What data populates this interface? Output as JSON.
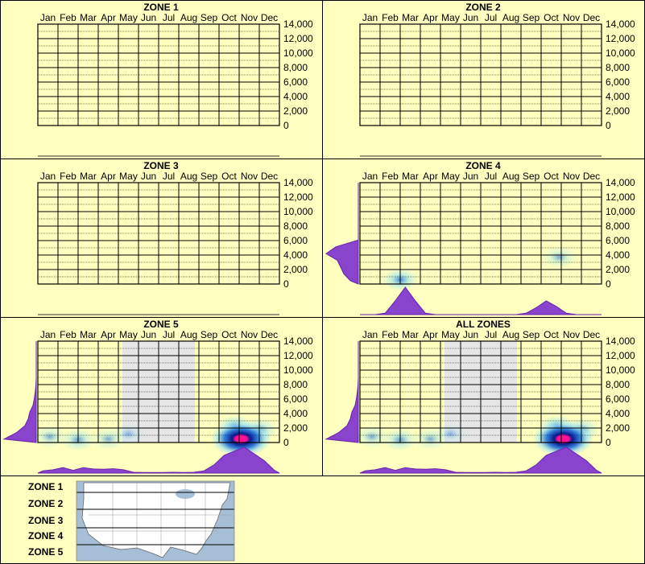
{
  "months": [
    "Jan",
    "Feb",
    "Mar",
    "Apr",
    "May",
    "Jun",
    "Jul",
    "Aug",
    "Sep",
    "Oct",
    "Nov",
    "Dec"
  ],
  "elevation_ticks": [
    "14,000",
    "12,000",
    "10,000",
    "8,000",
    "6,000",
    "4,000",
    "2,000",
    "0"
  ],
  "colors": {
    "background": "#ffffc0",
    "grid": "#000000",
    "density_fill": "#8844cc",
    "density_stroke": "#6a22b0",
    "season_shade": "#e6e6e6",
    "hotspot_low": "#9be3f0",
    "hotspot_mid": "#1e6fd8",
    "hotspot_high": "#0a1a8c",
    "hotspot_peak": "#ff1493"
  },
  "chart_data": [
    {
      "type": "heatmap",
      "title": "ZONE 1",
      "x": "month",
      "y": "elevation (ft)",
      "ylim": [
        0,
        14000
      ],
      "hotspots": [],
      "shaded_months": [],
      "monthly_density": [],
      "elevation_density": []
    },
    {
      "type": "heatmap",
      "title": "ZONE 2",
      "x": "month",
      "y": "elevation (ft)",
      "ylim": [
        0,
        14000
      ],
      "hotspots": [],
      "shaded_months": [],
      "monthly_density": [],
      "elevation_density": []
    },
    {
      "type": "heatmap",
      "title": "ZONE 3",
      "x": "month",
      "y": "elevation (ft)",
      "ylim": [
        0,
        14000
      ],
      "hotspots": [],
      "shaded_months": [],
      "monthly_density": [],
      "elevation_density": []
    },
    {
      "type": "heatmap",
      "title": "ZONE 4",
      "x": "month",
      "y": "elevation (ft)",
      "ylim": [
        0,
        14000
      ],
      "hotspots": [
        {
          "month": 2.0,
          "elev": 600,
          "intensity": 0.55
        },
        {
          "month": 9.9,
          "elev": 3700,
          "intensity": 0.3
        }
      ],
      "shaded_months": [],
      "monthly_density": [
        0,
        0,
        0.05,
        0.5,
        1.0,
        0.5,
        0.05,
        0,
        0,
        0,
        0,
        0,
        0,
        0,
        0,
        0,
        0.05,
        0.25,
        0.5,
        0.3,
        0.05,
        0,
        0,
        0
      ],
      "elevation_density": [
        0.25,
        0.45,
        0.55,
        0.65,
        1.0,
        0.7,
        0,
        0,
        0,
        0,
        0,
        0,
        0,
        0,
        0
      ]
    },
    {
      "type": "heatmap",
      "title": "ZONE 5",
      "x": "month",
      "y": "elevation (ft)",
      "ylim": [
        0,
        14000
      ],
      "hotspots": [
        {
          "month": 0.6,
          "elev": 800,
          "intensity": 0.3
        },
        {
          "month": 2.0,
          "elev": 400,
          "intensity": 0.4
        },
        {
          "month": 3.5,
          "elev": 500,
          "intensity": 0.3
        },
        {
          "month": 4.5,
          "elev": 1200,
          "intensity": 0.2
        },
        {
          "month": 9.8,
          "elev": 2200,
          "intensity": 0.55
        },
        {
          "month": 11.0,
          "elev": 1800,
          "intensity": 0.45
        },
        {
          "month": 10.1,
          "elev": 500,
          "intensity": 1.0
        }
      ],
      "shaded_months": [
        4.2,
        7.8
      ],
      "monthly_density": [
        0.08,
        0.12,
        0.2,
        0.1,
        0.2,
        0.15,
        0.14,
        0.16,
        0.12,
        0.03,
        0.02,
        0.02,
        0.02,
        0.03,
        0.02,
        0.03,
        0.08,
        0.3,
        0.65,
        0.8,
        0.95,
        0.7,
        0.45,
        0.1
      ],
      "elevation_density": [
        1.0,
        0.6,
        0.35,
        0.25,
        0.2,
        0.1,
        0.06,
        0.03,
        0.01,
        0,
        0,
        0,
        0,
        0,
        0
      ]
    },
    {
      "type": "heatmap",
      "title": "ALL ZONES",
      "x": "month",
      "y": "elevation (ft)",
      "ylim": [
        0,
        14000
      ],
      "hotspots": [
        {
          "month": 0.6,
          "elev": 800,
          "intensity": 0.3
        },
        {
          "month": 2.0,
          "elev": 400,
          "intensity": 0.4
        },
        {
          "month": 3.5,
          "elev": 500,
          "intensity": 0.3
        },
        {
          "month": 4.5,
          "elev": 1200,
          "intensity": 0.2
        },
        {
          "month": 9.8,
          "elev": 2200,
          "intensity": 0.55
        },
        {
          "month": 11.0,
          "elev": 1800,
          "intensity": 0.45
        },
        {
          "month": 10.1,
          "elev": 500,
          "intensity": 1.0
        }
      ],
      "shaded_months": [
        4.2,
        7.8
      ],
      "monthly_density": [
        0.08,
        0.12,
        0.2,
        0.1,
        0.2,
        0.15,
        0.14,
        0.16,
        0.12,
        0.03,
        0.02,
        0.02,
        0.02,
        0.03,
        0.02,
        0.03,
        0.08,
        0.3,
        0.65,
        0.8,
        0.95,
        0.7,
        0.45,
        0.1
      ],
      "elevation_density": [
        1.0,
        0.6,
        0.35,
        0.25,
        0.2,
        0.1,
        0.06,
        0.03,
        0.01,
        0,
        0,
        0,
        0,
        0,
        0
      ]
    }
  ],
  "legend": {
    "zones": [
      "ZONE 1",
      "ZONE 2",
      "ZONE 3",
      "ZONE 4",
      "ZONE 5"
    ],
    "map_icon": "us-zone-map-icon"
  }
}
